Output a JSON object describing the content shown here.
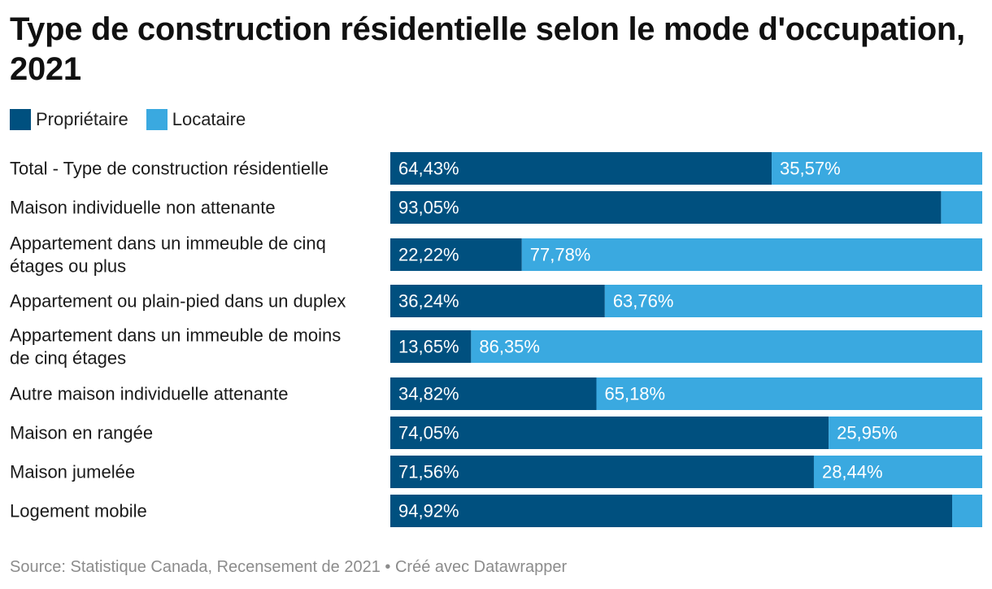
{
  "title": "Type de construction résidentielle selon le mode d'occupation, 2021",
  "source": "Source: Statistique Canada, Recensement de 2021 • Créé avec Datawrapper",
  "colors": {
    "proprietaire": "#00507f",
    "locataire": "#3aa9e0"
  },
  "chart_data": {
    "type": "bar",
    "orientation": "horizontal",
    "stacked": true,
    "title": "Type de construction résidentielle selon le mode d'occupation, 2021",
    "legend_placement": "top-left",
    "grid": false,
    "xlim": [
      0,
      100
    ],
    "unit": "%",
    "categories": [
      "Total - Type de construction résidentielle",
      "Maison individuelle non attenante",
      "Appartement dans un immeuble de cinq étages ou plus",
      "Appartement ou plain-pied dans un duplex",
      "Appartement dans un immeuble de moins de cinq étages",
      "Autre maison individuelle attenante",
      "Maison en rangée",
      "Maison jumelée",
      "Logement mobile"
    ],
    "category_lines": [
      [
        "Total - Type de construction résidentielle"
      ],
      [
        "Maison individuelle non attenante"
      ],
      [
        "Appartement dans un immeuble de cinq",
        "étages ou plus"
      ],
      [
        "Appartement ou plain-pied dans un duplex"
      ],
      [
        "Appartement dans un immeuble de moins",
        "de cinq étages"
      ],
      [
        "Autre maison individuelle attenante"
      ],
      [
        "Maison en rangée"
      ],
      [
        "Maison jumelée"
      ],
      [
        "Logement mobile"
      ]
    ],
    "series": [
      {
        "name": "Propriétaire",
        "color": "#00507f",
        "values": [
          64.43,
          93.05,
          22.22,
          36.24,
          13.65,
          34.82,
          74.05,
          71.56,
          94.92
        ],
        "labels": [
          "64,43%",
          "93,05%",
          "22,22%",
          "36,24%",
          "13,65%",
          "34,82%",
          "74,05%",
          "71,56%",
          "94,92%"
        ]
      },
      {
        "name": "Locataire",
        "color": "#3aa9e0",
        "values": [
          35.57,
          6.95,
          77.78,
          63.76,
          86.35,
          65.18,
          25.95,
          28.44,
          5.08
        ],
        "labels": [
          "35,57%",
          "",
          "77,78%",
          "63,76%",
          "86,35%",
          "65,18%",
          "25,95%",
          "28,44%",
          ""
        ]
      }
    ]
  }
}
